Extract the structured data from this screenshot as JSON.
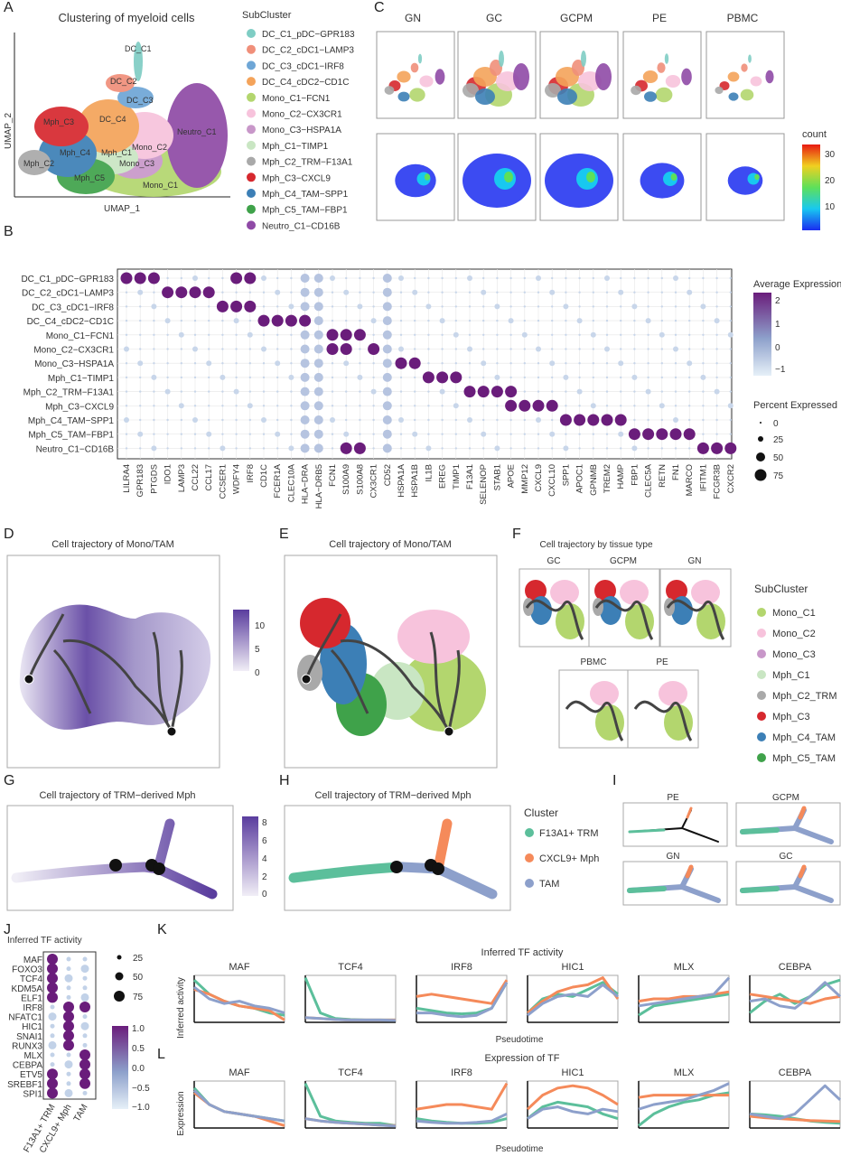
{
  "panel_letters": [
    "A",
    "B",
    "C",
    "D",
    "E",
    "F",
    "G",
    "H",
    "I",
    "J",
    "K",
    "L"
  ],
  "colors": {
    "DC_C1": "#7fcdc4",
    "DC_C2": "#f08f7a",
    "DC_C3": "#6ea6d6",
    "DC_C4": "#f4a35a",
    "Mono_C1": "#b3d66e",
    "Mono_C2": "#f7c3dc",
    "Mono_C3": "#c897c9",
    "Mph_C1": "#c9e6c3",
    "Mph_C2": "#a9a9a9",
    "Mph_C3": "#d6282e",
    "Mph_C4": "#3c7fb6",
    "Mph_C5": "#3fa24a",
    "Neutro_C1": "#8f4aa6",
    "purple_high": "#6a1d7b",
    "blue_low": "#dbe8f3",
    "TRM": "#5cbf9b",
    "CXCL9": "#f58a5a",
    "TAM": "#8da0cb"
  },
  "panelA": {
    "title": "Clustering of myeloid cells",
    "xlabel": "UMAP_1",
    "ylabel": "UMAP_2",
    "cluster_labels": [
      "DC_C1",
      "DC_C2",
      "DC_C3",
      "DC_C4",
      "Mph_C3",
      "Mono_C2",
      "Neutro_C1",
      "Mph_C4",
      "Mph_C1",
      "Mono_C3",
      "Mph_C2",
      "Mph_C5",
      "Mono_C1"
    ],
    "legend_title": "SubCluster",
    "legend": [
      "DC_C1_pDC−GPR183",
      "DC_C2_cDC1−LAMP3",
      "DC_C3_cDC1−IRF8",
      "DC_C4_cDC2−CD1C",
      "Mono_C1−FCN1",
      "Mono_C2−CX3CR1",
      "Mono_C3−HSPA1A",
      "Mph_C1−TIMP1",
      "Mph_C2_TRM−F13A1",
      "Mph_C3−CXCL9",
      "Mph_C4_TAM−SPP1",
      "Mph_C5_TAM−FBP1",
      "Neutro_C1−CD16B"
    ]
  },
  "panelC": {
    "tissues": [
      "GN",
      "GC",
      "GCPM",
      "PE",
      "PBMC"
    ],
    "legend_title": "count",
    "legend_ticks": [
      "30",
      "20",
      "10"
    ]
  },
  "chart_data": [
    {
      "type": "scatter",
      "subtype": "dot-plot",
      "panel": "B",
      "rows": [
        "DC_C1_pDC−GPR183",
        "DC_C2_cDC1−LAMP3",
        "DC_C3_cDC1−IRF8",
        "DC_C4_cDC2−CD1C",
        "Mono_C1−FCN1",
        "Mono_C2−CX3CR1",
        "Mono_C3−HSPA1A",
        "Mph_C1−TIMP1",
        "Mph_C2_TRM−F13A1",
        "Mph_C3−CXCL9",
        "Mph_C4_TAM−SPP1",
        "Mph_C5_TAM−FBP1",
        "Neutro_C1−CD16B"
      ],
      "genes": [
        "LILRA4",
        "GPR183",
        "PTGDS",
        "IDO1",
        "LAMP3",
        "CCL22",
        "CCL17",
        "CCSER1",
        "WDFY4",
        "IRF8",
        "CD1C",
        "FCER1A",
        "CLEC10A",
        "HLA−DRA",
        "HLA−DRB5",
        "FCN1",
        "S100A9",
        "S100A8",
        "CX3CR1",
        "CD52",
        "HSPA1A",
        "HSPA1B",
        "IL1B",
        "EREG",
        "TIMP1",
        "F13A1",
        "SELENOP",
        "STAB1",
        "APOE",
        "MMP12",
        "CXCL9",
        "CXCL10",
        "SPP1",
        "APOC1",
        "GPNMB",
        "TREM2",
        "HAMP",
        "FBP1",
        "CLEC5A",
        "RETN",
        "FN1",
        "MARCO",
        "IFITM1",
        "FCGR3B",
        "CXCR2"
      ],
      "highlights": [
        [
          0,
          0
        ],
        [
          0,
          1
        ],
        [
          0,
          2
        ],
        [
          0,
          8
        ],
        [
          0,
          9
        ],
        [
          1,
          3
        ],
        [
          1,
          4
        ],
        [
          1,
          5
        ],
        [
          1,
          6
        ],
        [
          2,
          7
        ],
        [
          2,
          8
        ],
        [
          2,
          9
        ],
        [
          3,
          10
        ],
        [
          3,
          11
        ],
        [
          3,
          12
        ],
        [
          3,
          13
        ],
        [
          4,
          15
        ],
        [
          4,
          16
        ],
        [
          4,
          17
        ],
        [
          5,
          15
        ],
        [
          5,
          16
        ],
        [
          5,
          18
        ],
        [
          6,
          20
        ],
        [
          6,
          21
        ],
        [
          7,
          22
        ],
        [
          7,
          23
        ],
        [
          7,
          24
        ],
        [
          8,
          25
        ],
        [
          8,
          26
        ],
        [
          8,
          27
        ],
        [
          8,
          28
        ],
        [
          9,
          28
        ],
        [
          9,
          29
        ],
        [
          9,
          30
        ],
        [
          9,
          31
        ],
        [
          10,
          32
        ],
        [
          10,
          33
        ],
        [
          10,
          34
        ],
        [
          10,
          35
        ],
        [
          10,
          36
        ],
        [
          11,
          37
        ],
        [
          11,
          38
        ],
        [
          11,
          39
        ],
        [
          11,
          40
        ],
        [
          11,
          41
        ],
        [
          12,
          16
        ],
        [
          12,
          17
        ],
        [
          12,
          42
        ],
        [
          12,
          43
        ],
        [
          12,
          44
        ]
      ],
      "color_legend_title": "Average Expression",
      "color_ticks": [
        "2",
        "1",
        "0",
        "−1"
      ],
      "size_legend_title": "Percent Expressed",
      "size_ticks": [
        "0",
        "25",
        "50",
        "75"
      ]
    },
    {
      "type": "scatter",
      "subtype": "dot-plot",
      "panel": "J",
      "title": "Inferred TF activity",
      "rows": [
        "MAF",
        "FOXO3",
        "TCF4",
        "KDM5A",
        "ELF1",
        "IRF8",
        "NFATC1",
        "HIC1",
        "SNAI1",
        "RUNX3",
        "MLX",
        "CEBPA",
        "ETV5",
        "SREBF1",
        "SPI1"
      ],
      "columns": [
        "F13A1+ TRM",
        "CXCL9+ Mph",
        "TAM"
      ],
      "size_ticks": [
        "25",
        "50",
        "75"
      ],
      "color_ticks": [
        "1.0",
        "0.5",
        "0.0",
        "−0.5",
        "−1.0"
      ]
    },
    {
      "type": "line",
      "panel": "K",
      "title": "Inferred TF activity",
      "genes": [
        "MAF",
        "TCF4",
        "IRF8",
        "HIC1",
        "MLX",
        "CEBPA"
      ],
      "xlabel": "Pseudotime",
      "ylabel": "Inferred activity",
      "series_colors": [
        "#5cbf9b",
        "#f58a5a",
        "#8da0cb"
      ]
    },
    {
      "type": "line",
      "panel": "L",
      "title": "Expression of TF",
      "genes": [
        "MAF",
        "TCF4",
        "IRF8",
        "HIC1",
        "MLX",
        "CEBPA"
      ],
      "xlabel": "Pseudotime",
      "ylabel": "Expression",
      "series_colors": [
        "#5cbf9b",
        "#f58a5a",
        "#8da0cb"
      ]
    }
  ],
  "panelD": {
    "title": "Cell trajectory of Mono/TAM",
    "legend_ticks": [
      "10",
      "5",
      "0"
    ]
  },
  "panelE": {
    "title": "Cell trajectory of Mono/TAM"
  },
  "panelF": {
    "title": "Cell trajectory by tissue type",
    "tissues": [
      "GC",
      "GCPM",
      "GN",
      "PBMC",
      "PE"
    ],
    "legend_title": "SubCluster",
    "legend": [
      "Mono_C1",
      "Mono_C2",
      "Mono_C3",
      "Mph_C1",
      "Mph_C2_TRM",
      "Mph_C3",
      "Mph_C4_TAM",
      "Mph_C5_TAM"
    ]
  },
  "panelG": {
    "title": "Cell trajectory of TRM−derived Mph",
    "legend_ticks": [
      "8",
      "6",
      "4",
      "2",
      "0"
    ]
  },
  "panelH": {
    "title": "Cell trajectory of TRM−derived Mph",
    "legend_title": "Cluster",
    "legend": [
      "F13A1+ TRM",
      "CXCL9+ Mph",
      "TAM"
    ]
  },
  "panelI": {
    "tissues": [
      "PE",
      "GCPM",
      "GN",
      "GC"
    ]
  }
}
